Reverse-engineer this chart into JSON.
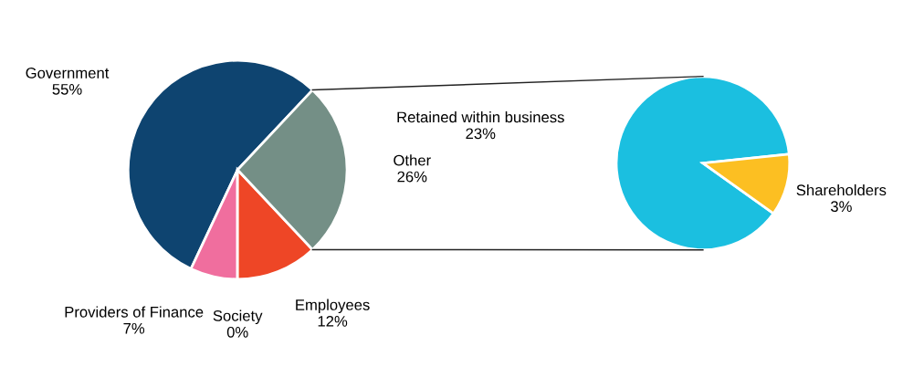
{
  "chart_data": [
    {
      "type": "pie",
      "categories": [
        "Government",
        "Providers of Finance",
        "Society",
        "Employees",
        "Other"
      ],
      "values": [
        55,
        7,
        0,
        12,
        26
      ],
      "value_labels": [
        "55%",
        "7%",
        "0%",
        "12%",
        "26%"
      ],
      "colors": [
        "#0e4470",
        "#f06e9e",
        "#cccccc",
        "#ee4626",
        "#748f86"
      ]
    },
    {
      "type": "pie",
      "categories": [
        "Retained within business",
        "Shareholders"
      ],
      "values": [
        23,
        3
      ],
      "value_labels": [
        "23%",
        "3%"
      ],
      "colors": [
        "#1bbfe0",
        "#fcbf22"
      ]
    }
  ]
}
